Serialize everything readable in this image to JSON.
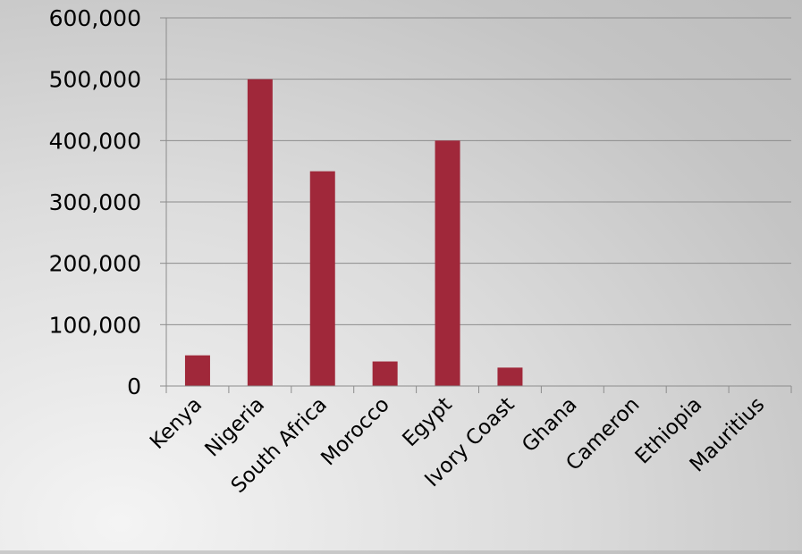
{
  "chart_data": {
    "type": "bar",
    "title": "",
    "xlabel": "",
    "ylabel": "",
    "categories": [
      "Kenya",
      "Nigeria",
      "South Africa",
      "Morocco",
      "Egypt",
      "Ivory Coast",
      "Ghana",
      "Cameron",
      "Ethiopia",
      "Mauritius"
    ],
    "values": [
      50000,
      500000,
      350000,
      40000,
      400000,
      30000,
      0,
      0,
      0,
      0
    ],
    "ylim": [
      0,
      600000
    ],
    "yticks": [
      0,
      100000,
      200000,
      300000,
      400000,
      500000,
      600000
    ],
    "ytick_labels": [
      "0",
      "100,000",
      "200,000",
      "300,000",
      "400,000",
      "500,000",
      "600,000"
    ],
    "grid": true,
    "legend": "none",
    "bar_color": "#a0283a",
    "grid_color": "#8c8c8c"
  }
}
